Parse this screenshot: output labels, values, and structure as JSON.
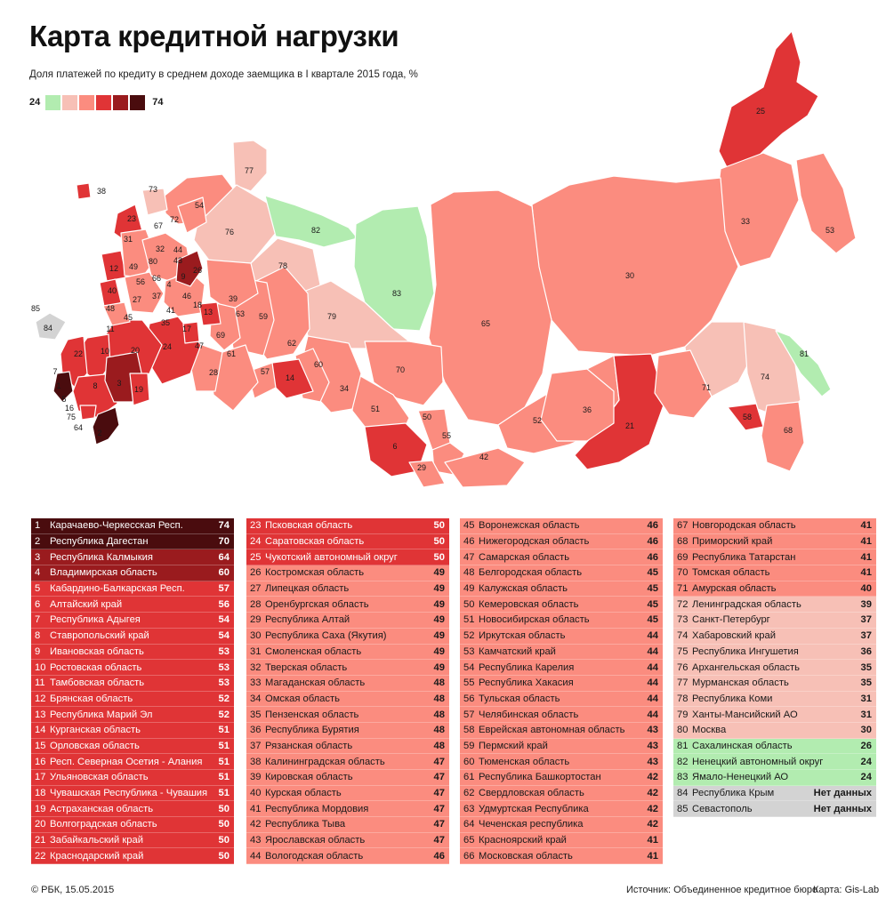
{
  "header": {
    "title": "Карта кредитной нагрузки",
    "subtitle": "Доля платежей по кредиту в среднем доходе заемщика в I квартале 2015 года, %",
    "legend_min": "24",
    "legend_max": "74"
  },
  "colors": {
    "c1": "#4a0c0e",
    "c2": "#9a1b1e",
    "c3": "#e03436",
    "c4": "#f0706a",
    "c5": "#fb8c7f",
    "c6": "#f7c0b6",
    "c7": "#b2ecb0",
    "c8": "#d3d3d3",
    "legend_scale": [
      "#b2ecb0",
      "#f7c0b6",
      "#fb8c7f",
      "#e03436",
      "#9a1b1e",
      "#4a0c0e"
    ]
  },
  "map_labels": [
    "25",
    "53",
    "33",
    "30",
    "77",
    "73",
    "54",
    "38",
    "23",
    "72",
    "76",
    "82",
    "67",
    "31",
    "32",
    "80",
    "44",
    "12",
    "49",
    "43",
    "26",
    "56",
    "66",
    "9",
    "40",
    "4",
    "46",
    "18",
    "27",
    "37",
    "85",
    "84",
    "48",
    "41",
    "63",
    "59",
    "78",
    "83",
    "45",
    "35",
    "13",
    "69",
    "79",
    "65",
    "11",
    "17",
    "47",
    "61",
    "62",
    "22",
    "7",
    "10",
    "20",
    "24",
    "81",
    "28",
    "57",
    "14",
    "60",
    "70",
    "1",
    "8",
    "3",
    "19",
    "34",
    "71",
    "74",
    "58",
    "5",
    "16",
    "75",
    "64",
    "2",
    "51",
    "36",
    "50",
    "55",
    "52",
    "21",
    "68",
    "6",
    "42",
    "29",
    "39"
  ],
  "table_rows": [
    {
      "n": "1",
      "name": "Карачаево-Черкесская Респ.",
      "value": "74",
      "cls": "c1"
    },
    {
      "n": "2",
      "name": "Республика Дагестан",
      "value": "70",
      "cls": "c1"
    },
    {
      "n": "3",
      "name": "Республика Калмыкия",
      "value": "64",
      "cls": "c2"
    },
    {
      "n": "4",
      "name": "Владимирская область",
      "value": "60",
      "cls": "c2"
    },
    {
      "n": "5",
      "name": "Кабардино-Балкарская Респ.",
      "value": "57",
      "cls": "c3"
    },
    {
      "n": "6",
      "name": "Алтайский край",
      "value": "56",
      "cls": "c3"
    },
    {
      "n": "7",
      "name": "Республика Адыгея",
      "value": "54",
      "cls": "c3"
    },
    {
      "n": "8",
      "name": "Ставропольский край",
      "value": "54",
      "cls": "c3"
    },
    {
      "n": "9",
      "name": "Ивановская область",
      "value": "53",
      "cls": "c3"
    },
    {
      "n": "10",
      "name": "Ростовская область",
      "value": "53",
      "cls": "c3"
    },
    {
      "n": "11",
      "name": "Тамбовская область",
      "value": "53",
      "cls": "c3"
    },
    {
      "n": "12",
      "name": "Брянская область",
      "value": "52",
      "cls": "c3"
    },
    {
      "n": "13",
      "name": "Республика Марий Эл",
      "value": "52",
      "cls": "c3"
    },
    {
      "n": "14",
      "name": "Курганская область",
      "value": "51",
      "cls": "c3"
    },
    {
      "n": "15",
      "name": "Орловская область",
      "value": "51",
      "cls": "c3"
    },
    {
      "n": "16",
      "name": "Респ. Северная Осетия - Алания",
      "value": "51",
      "cls": "c3"
    },
    {
      "n": "17",
      "name": "Ульяновская область",
      "value": "51",
      "cls": "c3"
    },
    {
      "n": "18",
      "name": "Чувашская Республика - Чувашия",
      "value": "51",
      "cls": "c3"
    },
    {
      "n": "19",
      "name": "Астраханская область",
      "value": "50",
      "cls": "c3"
    },
    {
      "n": "20",
      "name": "Волгоградская область",
      "value": "50",
      "cls": "c3"
    },
    {
      "n": "21",
      "name": "Забайкальский край",
      "value": "50",
      "cls": "c3"
    },
    {
      "n": "22",
      "name": "Краснодарский край",
      "value": "50",
      "cls": "c3"
    },
    {
      "n": "23",
      "name": "Псковская область",
      "value": "50",
      "cls": "c3"
    },
    {
      "n": "24",
      "name": "Саратовская область",
      "value": "50",
      "cls": "c3"
    },
    {
      "n": "25",
      "name": "Чукотский автономный округ",
      "value": "50",
      "cls": "c3"
    },
    {
      "n": "26",
      "name": "Костромская область",
      "value": "49",
      "cls": "c5"
    },
    {
      "n": "27",
      "name": "Липецкая область",
      "value": "49",
      "cls": "c5"
    },
    {
      "n": "28",
      "name": "Оренбургская область",
      "value": "49",
      "cls": "c5"
    },
    {
      "n": "29",
      "name": "Республика Алтай",
      "value": "49",
      "cls": "c5"
    },
    {
      "n": "30",
      "name": "Республика Саха (Якутия)",
      "value": "49",
      "cls": "c5"
    },
    {
      "n": "31",
      "name": "Смоленская область",
      "value": "49",
      "cls": "c5"
    },
    {
      "n": "32",
      "name": "Тверская область",
      "value": "49",
      "cls": "c5"
    },
    {
      "n": "33",
      "name": "Магаданская область",
      "value": "48",
      "cls": "c5"
    },
    {
      "n": "34",
      "name": "Омская область",
      "value": "48",
      "cls": "c5"
    },
    {
      "n": "35",
      "name": "Пензенская область",
      "value": "48",
      "cls": "c5"
    },
    {
      "n": "36",
      "name": "Республика Бурятия",
      "value": "48",
      "cls": "c5"
    },
    {
      "n": "37",
      "name": "Рязанская область",
      "value": "48",
      "cls": "c5"
    },
    {
      "n": "38",
      "name": "Калининградская область",
      "value": "47",
      "cls": "c5"
    },
    {
      "n": "39",
      "name": "Кировская область",
      "value": "47",
      "cls": "c5"
    },
    {
      "n": "40",
      "name": "Курская область",
      "value": "47",
      "cls": "c5"
    },
    {
      "n": "41",
      "name": "Республика Мордовия",
      "value": "47",
      "cls": "c5"
    },
    {
      "n": "42",
      "name": "Республика Тыва",
      "value": "47",
      "cls": "c5"
    },
    {
      "n": "43",
      "name": "Ярославская область",
      "value": "47",
      "cls": "c5"
    },
    {
      "n": "44",
      "name": "Вологодская область",
      "value": "46",
      "cls": "c5"
    },
    {
      "n": "45",
      "name": "Воронежская область",
      "value": "46",
      "cls": "c5"
    },
    {
      "n": "46",
      "name": "Нижегородская область",
      "value": "46",
      "cls": "c5"
    },
    {
      "n": "47",
      "name": "Самарская область",
      "value": "46",
      "cls": "c5"
    },
    {
      "n": "48",
      "name": "Белгородская область",
      "value": "45",
      "cls": "c5"
    },
    {
      "n": "49",
      "name": "Калужская область",
      "value": "45",
      "cls": "c5"
    },
    {
      "n": "50",
      "name": "Кемеровская область",
      "value": "45",
      "cls": "c5"
    },
    {
      "n": "51",
      "name": "Новосибирская область",
      "value": "45",
      "cls": "c5"
    },
    {
      "n": "52",
      "name": "Иркутская область",
      "value": "44",
      "cls": "c5"
    },
    {
      "n": "53",
      "name": "Камчатский край",
      "value": "44",
      "cls": "c5"
    },
    {
      "n": "54",
      "name": "Республика Карелия",
      "value": "44",
      "cls": "c5"
    },
    {
      "n": "55",
      "name": "Республика Хакасия",
      "value": "44",
      "cls": "c5"
    },
    {
      "n": "56",
      "name": "Тульская область",
      "value": "44",
      "cls": "c5"
    },
    {
      "n": "57",
      "name": "Челябинская область",
      "value": "44",
      "cls": "c5"
    },
    {
      "n": "58",
      "name": "Еврейская автономная область",
      "value": "43",
      "cls": "c5"
    },
    {
      "n": "59",
      "name": "Пермский край",
      "value": "43",
      "cls": "c5"
    },
    {
      "n": "60",
      "name": "Тюменская область",
      "value": "43",
      "cls": "c5"
    },
    {
      "n": "61",
      "name": "Республика Башкортостан",
      "value": "42",
      "cls": "c5"
    },
    {
      "n": "62",
      "name": "Свердловская область",
      "value": "42",
      "cls": "c5"
    },
    {
      "n": "63",
      "name": "Удмуртская Республика",
      "value": "42",
      "cls": "c5"
    },
    {
      "n": "64",
      "name": "Чеченская республика",
      "value": "42",
      "cls": "c5"
    },
    {
      "n": "65",
      "name": "Красноярский край",
      "value": "41",
      "cls": "c5"
    },
    {
      "n": "66",
      "name": "Московская область",
      "value": "41",
      "cls": "c5"
    },
    {
      "n": "67",
      "name": "Новгородская область",
      "value": "41",
      "cls": "c5"
    },
    {
      "n": "68",
      "name": "Приморский край",
      "value": "41",
      "cls": "c5"
    },
    {
      "n": "69",
      "name": "Республика Татарстан",
      "value": "41",
      "cls": "c5"
    },
    {
      "n": "70",
      "name": "Томская область",
      "value": "41",
      "cls": "c5"
    },
    {
      "n": "71",
      "name": "Амурская область",
      "value": "40",
      "cls": "c5"
    },
    {
      "n": "72",
      "name": "Ленинградская область",
      "value": "39",
      "cls": "c6"
    },
    {
      "n": "73",
      "name": "Санкт-Петербург",
      "value": "37",
      "cls": "c6"
    },
    {
      "n": "74",
      "name": "Хабаровский край",
      "value": "37",
      "cls": "c6"
    },
    {
      "n": "75",
      "name": "Республика Ингушетия",
      "value": "36",
      "cls": "c6"
    },
    {
      "n": "76",
      "name": "Архангельская область",
      "value": "35",
      "cls": "c6"
    },
    {
      "n": "77",
      "name": "Мурманская область",
      "value": "35",
      "cls": "c6"
    },
    {
      "n": "78",
      "name": "Республика Коми",
      "value": "31",
      "cls": "c6"
    },
    {
      "n": "79",
      "name": "Ханты-Мансийский АО",
      "value": "31",
      "cls": "c6"
    },
    {
      "n": "80",
      "name": "Москва",
      "value": "30",
      "cls": "c6"
    },
    {
      "n": "81",
      "name": "Сахалинская область",
      "value": "26",
      "cls": "c7"
    },
    {
      "n": "82",
      "name": "Ненецкий автономный округ",
      "value": "24",
      "cls": "c7"
    },
    {
      "n": "83",
      "name": "Ямало-Ненецкий АО",
      "value": "24",
      "cls": "c7"
    },
    {
      "n": "84",
      "name": "Республика Крым",
      "value": "Нет данных",
      "cls": "c8"
    },
    {
      "n": "85",
      "name": "Севастополь",
      "value": "Нет данных",
      "cls": "c8"
    }
  ],
  "footer": {
    "copyright": "© РБК, 15.05.2015",
    "source_label": "Источник:",
    "source": "Объединенное кредитное бюро",
    "map_label": "Карта:",
    "map_credit": "Gis-Lab"
  }
}
